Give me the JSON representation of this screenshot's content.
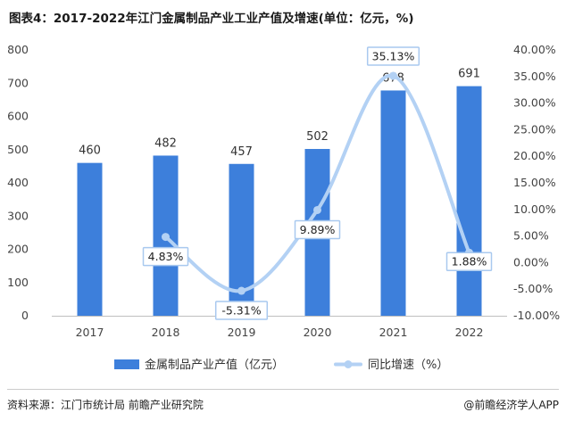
{
  "title": "图表4：2017-2022年江门金属制品产业工业产值及增速(单位：亿元，%)",
  "source": "资料来源：江门市统计局 前瞻产业研究院",
  "brand": "@前瞻经济学人APP",
  "colors": {
    "bar": "#3d7fdb",
    "line": "#b3d1f4",
    "label_border": "#a9c9ef"
  },
  "chart_data": {
    "type": "bar+line",
    "categories": [
      "2017",
      "2018",
      "2019",
      "2020",
      "2021",
      "2022"
    ],
    "series": [
      {
        "name": "金属制品产业产值（亿元）",
        "type": "bar",
        "axis": "left",
        "values": [
          460,
          482,
          457,
          502,
          678,
          691
        ],
        "labels": [
          "460",
          "482",
          "457",
          "502",
          "678",
          "691"
        ]
      },
      {
        "name": "同比增速（%）",
        "type": "line",
        "axis": "right",
        "values": [
          null,
          4.83,
          -5.31,
          9.89,
          35.13,
          1.88
        ],
        "labels": [
          "",
          "4.83%",
          "-5.31%",
          "9.89%",
          "35.13%",
          "1.88%"
        ]
      }
    ],
    "y_left": {
      "min": 0,
      "max": 800,
      "step": 100,
      "ticks": [
        "0",
        "100",
        "200",
        "300",
        "400",
        "500",
        "600",
        "700",
        "800"
      ]
    },
    "y_right": {
      "min": -10,
      "max": 40,
      "step": 5,
      "ticks": [
        "-10.00%",
        "-5.00%",
        "0.00%",
        "5.00%",
        "10.00%",
        "15.00%",
        "20.00%",
        "25.00%",
        "30.00%",
        "35.00%",
        "40.00%"
      ]
    },
    "grid": false,
    "legend_position": "bottom"
  }
}
